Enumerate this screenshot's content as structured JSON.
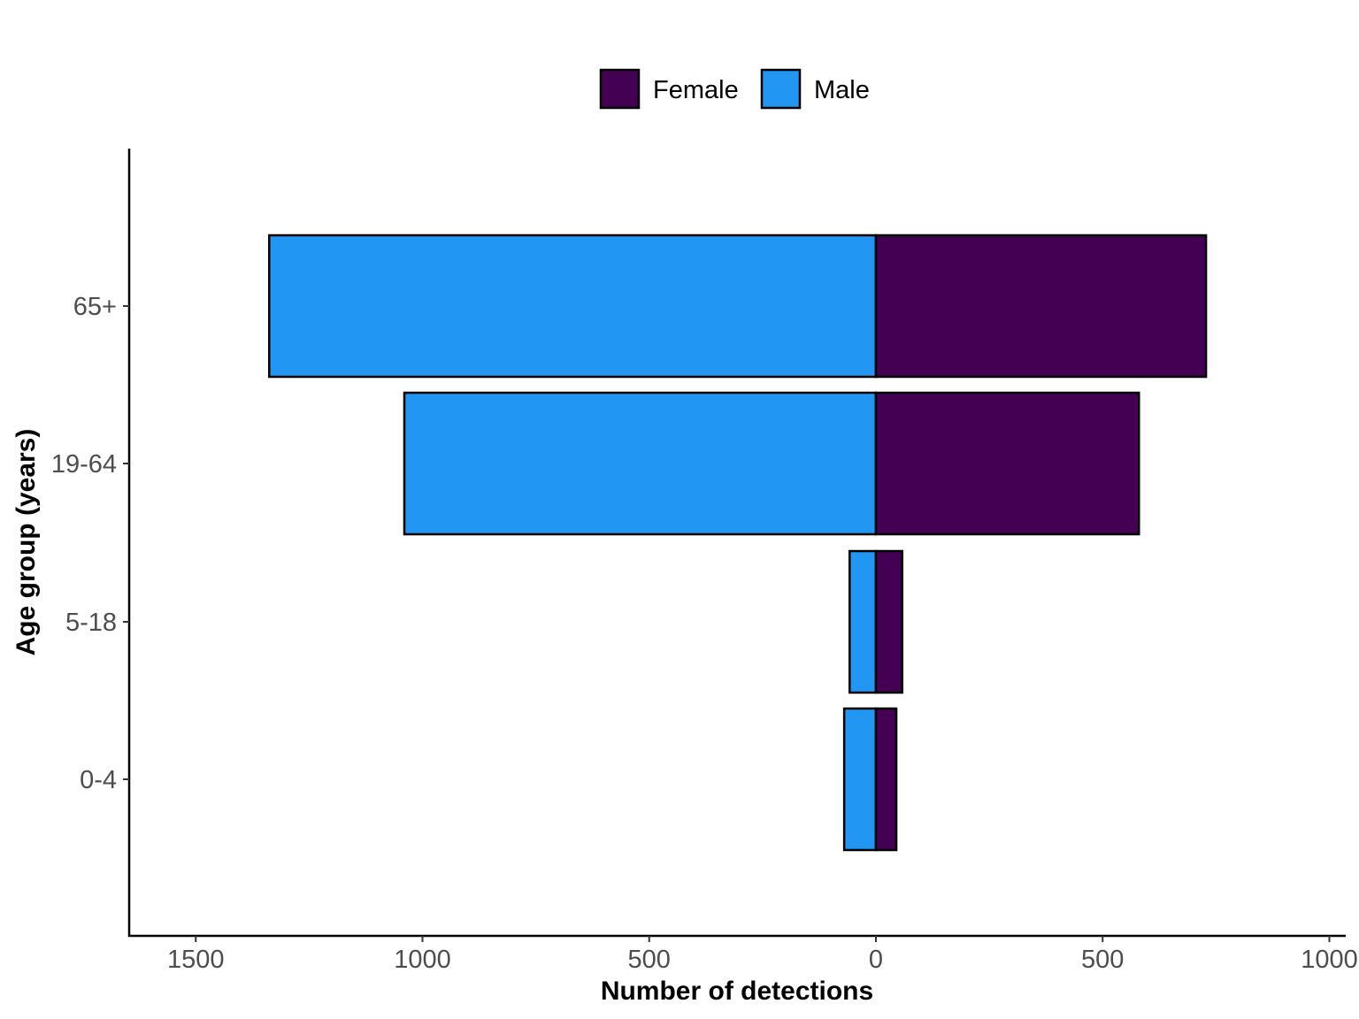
{
  "chart_data": {
    "type": "bar",
    "orientation": "horizontal",
    "layout": "population-pyramid",
    "categories": [
      "0-4",
      "5-18",
      "19-64",
      "65+"
    ],
    "series": [
      {
        "name": "Female",
        "side": "right",
        "color": "#440154",
        "values": [
          45,
          58,
          580,
          728
        ]
      },
      {
        "name": "Male",
        "side": "left",
        "color": "#2196F3",
        "values": [
          70,
          58,
          1040,
          1338
        ]
      }
    ],
    "xlabel": "Number of detections",
    "ylabel": "Age group (years)",
    "xlim_left": [
      0,
      1650
    ],
    "xlim_right": [
      0,
      1040
    ],
    "x_ticks_left": [
      1500,
      1000,
      500,
      0
    ],
    "x_ticks_right": [
      500,
      1000
    ],
    "x_tick_labels": [
      "1500",
      "1000",
      "500",
      "0",
      "500",
      "1000"
    ],
    "legend": {
      "position": "top",
      "entries": [
        "Female",
        "Male"
      ]
    },
    "grid": false,
    "bar_outline_color": "#000000"
  }
}
